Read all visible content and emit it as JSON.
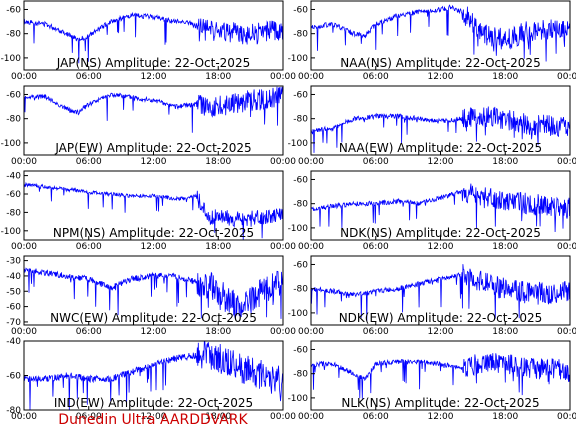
{
  "footer": {
    "text": "Dunedin Ultra AARDDVARK",
    "color": "#cc0000"
  },
  "series_color": "#0000ff",
  "chart_data": [
    {
      "type": "line",
      "title": "JAP(NS) Amplitude: 22-Oct-2025",
      "x_ticks": [
        "00:00",
        "06:00",
        "12:00",
        "18:00",
        "00:00"
      ],
      "y_ticks": [
        -100,
        -80,
        -60
      ],
      "ylim": [
        -110,
        -53
      ],
      "grid": false,
      "legend": "none",
      "series": [
        {
          "x_hours": [
            0,
            2,
            4,
            5,
            6,
            8,
            10,
            12,
            14,
            15,
            16,
            17,
            18,
            20,
            22,
            24
          ],
          "amplitude_db": [
            -70,
            -72,
            -80,
            -85,
            -82,
            -70,
            -65,
            -66,
            -70,
            -70,
            -74,
            -76,
            -78,
            -80,
            -80,
            -76
          ]
        }
      ]
    },
    {
      "type": "line",
      "title": "NAA(NS) Amplitude: 22-Oct-2025",
      "x_ticks": [
        "00:00",
        "06:00",
        "12:00",
        "18:00",
        "00:00"
      ],
      "y_ticks": [
        -100,
        -80,
        -60
      ],
      "ylim": [
        -110,
        -53
      ],
      "grid": false,
      "legend": "none",
      "series": [
        {
          "x_hours": [
            0,
            2,
            4,
            5,
            6,
            8,
            10,
            12,
            13,
            14,
            16,
            18,
            20,
            22,
            24
          ],
          "amplitude_db": [
            -75,
            -72,
            -80,
            -82,
            -72,
            -65,
            -62,
            -60,
            -58,
            -62,
            -80,
            -85,
            -78,
            -76,
            -78
          ]
        }
      ]
    },
    {
      "type": "line",
      "title": "JAP(EW) Amplitude: 22-Oct-2025",
      "x_ticks": [
        "00:00",
        "06:00",
        "12:00",
        "18:00",
        "00:00"
      ],
      "y_ticks": [
        -100,
        -80,
        -60
      ],
      "ylim": [
        -110,
        -53
      ],
      "grid": false,
      "legend": "none",
      "series": [
        {
          "x_hours": [
            0,
            2,
            4,
            5,
            6,
            8,
            10,
            12,
            14,
            16,
            18,
            20,
            22,
            24
          ],
          "amplitude_db": [
            -62,
            -62,
            -72,
            -75,
            -68,
            -60,
            -62,
            -65,
            -70,
            -68,
            -70,
            -66,
            -64,
            -62
          ]
        }
      ]
    },
    {
      "type": "line",
      "title": "NAA(EW) Amplitude: 22-Oct-2025",
      "x_ticks": [
        "00:00",
        "06:00",
        "12:00",
        "18:00",
        "00:00"
      ],
      "y_ticks": [
        -100,
        -80,
        -60
      ],
      "ylim": [
        -110,
        -53
      ],
      "grid": false,
      "legend": "none",
      "series": [
        {
          "x_hours": [
            0,
            2,
            4,
            6,
            8,
            10,
            12,
            14,
            16,
            18,
            20,
            22,
            24
          ],
          "amplitude_db": [
            -90,
            -88,
            -80,
            -78,
            -78,
            -80,
            -82,
            -80,
            -78,
            -80,
            -85,
            -86,
            -86
          ]
        }
      ]
    },
    {
      "type": "line",
      "title": "NPM(NS) Amplitude: 22-Oct-2025",
      "x_ticks": [
        "00:00",
        "06:00",
        "12:00",
        "18:00",
        "00:00"
      ],
      "y_ticks": [
        -100,
        -80,
        -60,
        -40
      ],
      "ylim": [
        -110,
        -35
      ],
      "grid": false,
      "legend": "none",
      "series": [
        {
          "x_hours": [
            0,
            2,
            4,
            6,
            8,
            10,
            12,
            14,
            15,
            16,
            17,
            18,
            20,
            22,
            24
          ],
          "amplitude_db": [
            -50,
            -52,
            -55,
            -58,
            -60,
            -62,
            -62,
            -65,
            -65,
            -62,
            -85,
            -85,
            -88,
            -86,
            -82
          ]
        }
      ]
    },
    {
      "type": "line",
      "title": "NDK(NS) Amplitude: 22-Oct-2025",
      "x_ticks": [
        "00:00",
        "06:00",
        "12:00",
        "18:00",
        "00:00"
      ],
      "y_ticks": [
        -100,
        -80,
        -60
      ],
      "ylim": [
        -110,
        -53
      ],
      "grid": false,
      "legend": "none",
      "series": [
        {
          "x_hours": [
            0,
            2,
            4,
            6,
            8,
            10,
            12,
            14,
            16,
            18,
            20,
            22,
            24
          ],
          "amplitude_db": [
            -85,
            -82,
            -80,
            -80,
            -78,
            -80,
            -75,
            -70,
            -75,
            -78,
            -80,
            -82,
            -84
          ]
        }
      ]
    },
    {
      "type": "line",
      "title": "NWC(EW) Amplitude: 22-Oct-2025",
      "x_ticks": [
        "00:00",
        "06:00",
        "12:00",
        "18:00",
        "00:00"
      ],
      "y_ticks": [
        -70,
        -60,
        -50,
        -40,
        -30
      ],
      "ylim": [
        -72,
        -27
      ],
      "grid": false,
      "legend": "none",
      "series": [
        {
          "x_hours": [
            0,
            2,
            4,
            6,
            8,
            10,
            12,
            14,
            15,
            16,
            18,
            20,
            22,
            24
          ],
          "amplitude_db": [
            -36,
            -38,
            -40,
            -42,
            -48,
            -42,
            -40,
            -40,
            -42,
            -44,
            -48,
            -62,
            -50,
            -44
          ]
        }
      ]
    },
    {
      "type": "line",
      "title": "NDK(EW) Amplitude: 22-Oct-2025",
      "x_ticks": [
        "00:00",
        "06:00",
        "12:00",
        "18:00",
        "00:00"
      ],
      "y_ticks": [
        -100,
        -80,
        -60
      ],
      "ylim": [
        -110,
        -53
      ],
      "grid": false,
      "legend": "none",
      "series": [
        {
          "x_hours": [
            0,
            2,
            4,
            6,
            8,
            10,
            12,
            14,
            16,
            18,
            20,
            22,
            24
          ],
          "amplitude_db": [
            -80,
            -82,
            -85,
            -82,
            -80,
            -76,
            -72,
            -68,
            -75,
            -80,
            -82,
            -84,
            -82
          ]
        }
      ]
    },
    {
      "type": "line",
      "title": "IND(EW) Amplitude: 22-Oct-2025",
      "x_ticks": [
        "00:00",
        "06:00",
        "12:00",
        "18:00",
        "00:00"
      ],
      "y_ticks": [
        -80,
        -60,
        -40
      ],
      "ylim": [
        -80,
        -40
      ],
      "grid": false,
      "legend": "none",
      "series": [
        {
          "x_hours": [
            0,
            2,
            4,
            6,
            8,
            10,
            12,
            14,
            16,
            18,
            20,
            22,
            24
          ],
          "amplitude_db": [
            -62,
            -62,
            -60,
            -62,
            -62,
            -58,
            -54,
            -50,
            -48,
            -50,
            -55,
            -60,
            -64
          ]
        }
      ]
    },
    {
      "type": "line",
      "title": "NLK(NS) Amplitude: 22-Oct-2025",
      "x_ticks": [
        "00:00",
        "06:00",
        "12:00",
        "18:00",
        "00:00"
      ],
      "y_ticks": [
        -100,
        -80,
        -60
      ],
      "ylim": [
        -110,
        -53
      ],
      "grid": false,
      "legend": "none",
      "series": [
        {
          "x_hours": [
            0,
            2,
            4,
            5,
            6,
            8,
            10,
            12,
            14,
            16,
            18,
            20,
            22,
            24
          ],
          "amplitude_db": [
            -72,
            -72,
            -80,
            -85,
            -72,
            -70,
            -70,
            -72,
            -75,
            -70,
            -72,
            -75,
            -76,
            -78
          ]
        }
      ]
    }
  ]
}
